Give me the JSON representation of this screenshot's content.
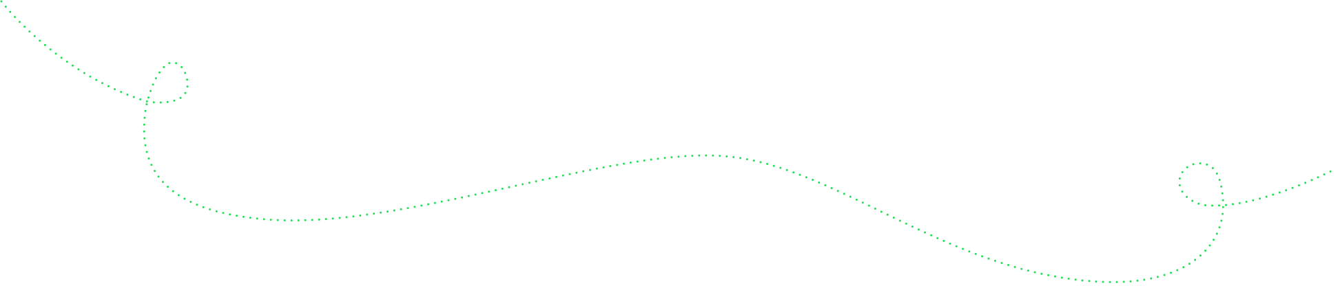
{
  "decoration": {
    "icon": "dotted-looping-path",
    "dot_color": "#22dd55",
    "background": "#ffffff"
  }
}
